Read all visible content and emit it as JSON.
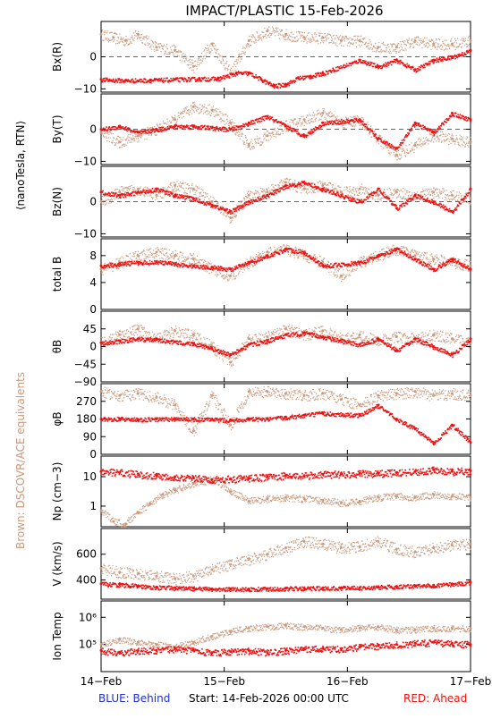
{
  "title": "IMPACT/PLASTIC   15-Feb-2026",
  "side_label_rtn": "⟨nanoTesla, RTN⟩",
  "side_label_brown": "Brown: DSCOVR/ACE equivalents",
  "footer": {
    "behind": "BLUE: Behind",
    "start": "Start: 14-Feb-2026 00:00 UTC",
    "ahead": "RED: Ahead"
  },
  "colors": {
    "ahead": "#ee1111",
    "brown": "#c89a7e",
    "axis": "#000000"
  },
  "chart_data": [
    {
      "type": "scatter",
      "ylabel": "Bx(R)",
      "ylim": [
        -11,
        11
      ],
      "yticks": [
        {
          "v": 0,
          "label": "0"
        },
        {
          "v": -10,
          "label": "−10"
        }
      ],
      "zero_line": true,
      "series": [
        {
          "color": "brown",
          "x": [
            0,
            0.1,
            0.2,
            0.3,
            0.45,
            0.6,
            0.75,
            0.9,
            1.05,
            1.2,
            1.35,
            1.5,
            1.65,
            1.8,
            1.95,
            2.1,
            2.25,
            2.4,
            2.55,
            2.7,
            2.85,
            3.0
          ],
          "y": [
            7,
            6,
            5,
            7,
            3,
            2,
            -3,
            4,
            -5,
            5,
            8,
            7,
            6,
            6,
            5,
            5,
            3,
            3,
            5,
            4,
            4,
            5
          ]
        },
        {
          "color": "ahead",
          "x": [
            0,
            0.2,
            0.4,
            0.6,
            0.8,
            0.95,
            1.1,
            1.2,
            1.3,
            1.4,
            1.5,
            1.6,
            1.7,
            1.8,
            2.1,
            2.25,
            2.4,
            2.55,
            2.7,
            2.85,
            3.0
          ],
          "y": [
            -7,
            -7.3,
            -7.2,
            -7,
            -6.8,
            -6.7,
            -5,
            -5,
            -7,
            -9,
            -8.5,
            -6.5,
            -6,
            -5,
            -1,
            -3,
            -1,
            -4,
            -1,
            0,
            2
          ]
        }
      ]
    },
    {
      "type": "scatter",
      "ylabel": "By(T)",
      "ylim": [
        -11,
        11
      ],
      "yticks": [
        {
          "v": 0,
          "label": "0"
        },
        {
          "v": -10,
          "label": "−10"
        }
      ],
      "zero_line": true,
      "series": [
        {
          "color": "brown",
          "x": [
            0,
            0.15,
            0.3,
            0.45,
            0.6,
            0.75,
            0.9,
            1.05,
            1.2,
            1.35,
            1.5,
            1.65,
            1.8,
            1.95,
            2.1,
            2.25,
            2.4,
            2.55,
            2.7,
            2.85,
            3.0
          ],
          "y": [
            -1,
            -4,
            -2,
            0,
            3,
            7,
            6,
            2,
            -5,
            -2,
            1,
            3,
            5,
            2,
            3,
            -3,
            -8,
            -5,
            -2,
            -3,
            -4
          ]
        },
        {
          "color": "ahead",
          "x": [
            0,
            0.15,
            0.3,
            0.45,
            0.6,
            0.75,
            0.9,
            1.05,
            1.2,
            1.35,
            1.5,
            1.65,
            1.8,
            2.1,
            2.25,
            2.4,
            2.55,
            2.7,
            2.85,
            3.0
          ],
          "y": [
            0,
            1,
            -1,
            0,
            1,
            1,
            0.5,
            0,
            2,
            4,
            1,
            -2,
            2,
            3,
            -3,
            -6,
            2,
            -1,
            5,
            3
          ]
        }
      ]
    },
    {
      "type": "scatter",
      "ylabel": "Bz(N)",
      "ylim": [
        -11,
        11
      ],
      "yticks": [
        {
          "v": 0,
          "label": "0"
        },
        {
          "v": -10,
          "label": "−10"
        }
      ],
      "zero_line": true,
      "series": [
        {
          "color": "brown",
          "x": [
            0,
            0.15,
            0.3,
            0.45,
            0.6,
            0.75,
            0.9,
            1.05,
            1.2,
            1.35,
            1.5,
            1.65,
            1.8,
            1.95,
            2.1,
            2.25,
            2.4,
            2.55,
            2.7,
            2.85,
            3.0
          ],
          "y": [
            0,
            3,
            4,
            2,
            5,
            4,
            0,
            -5,
            2,
            3,
            6,
            4,
            5,
            3,
            4,
            2,
            3,
            2,
            3,
            2,
            1
          ]
        },
        {
          "color": "ahead",
          "x": [
            0,
            0.15,
            0.3,
            0.45,
            0.6,
            0.75,
            0.9,
            1.05,
            1.2,
            1.35,
            1.5,
            1.65,
            1.8,
            2.1,
            2.25,
            2.4,
            2.55,
            2.7,
            2.85,
            3.0
          ],
          "y": [
            3,
            2,
            3,
            4,
            2,
            1,
            -1,
            -3,
            0,
            2,
            5,
            6,
            4,
            0,
            4,
            -2,
            2,
            0,
            -3,
            4
          ]
        }
      ]
    },
    {
      "type": "scatter",
      "ylabel": "total B",
      "ylim": [
        0,
        10.5
      ],
      "yticks": [
        {
          "v": 8,
          "label": "8"
        },
        {
          "v": 4,
          "label": "4"
        },
        {
          "v": 0,
          "label": "0"
        }
      ],
      "zero_line": false,
      "series": [
        {
          "color": "brown",
          "x": [
            0,
            0.15,
            0.3,
            0.45,
            0.6,
            0.75,
            0.9,
            1.05,
            1.2,
            1.35,
            1.5,
            1.65,
            1.8,
            1.95,
            2.1,
            2.25,
            2.4,
            2.55,
            2.7,
            2.85,
            3.0
          ],
          "y": [
            6,
            7,
            8,
            8.5,
            8,
            7.5,
            6,
            5,
            7,
            8.5,
            9,
            8,
            7,
            5,
            7,
            8,
            9,
            8,
            7.5,
            7,
            6.5
          ]
        },
        {
          "color": "ahead",
          "x": [
            0,
            0.15,
            0.3,
            0.45,
            0.6,
            0.75,
            0.9,
            1.05,
            1.2,
            1.35,
            1.5,
            1.65,
            1.8,
            2.1,
            2.25,
            2.4,
            2.55,
            2.7,
            2.85,
            3.0
          ],
          "y": [
            6.5,
            6.8,
            7,
            7.1,
            6.8,
            6.5,
            6.3,
            6,
            7,
            8,
            9,
            8.5,
            6.5,
            7,
            8,
            9,
            7.5,
            6,
            7.5,
            6
          ]
        }
      ]
    },
    {
      "type": "scatter",
      "ylabel": "θB",
      "ylim": [
        -90,
        90
      ],
      "yticks": [
        {
          "v": 45,
          "label": "45"
        },
        {
          "v": 0,
          "label": "0"
        },
        {
          "v": -45,
          "label": "−45"
        },
        {
          "v": -90,
          "label": "−90"
        }
      ],
      "zero_line": false,
      "series": [
        {
          "color": "brown",
          "x": [
            0,
            0.15,
            0.3,
            0.45,
            0.6,
            0.75,
            0.9,
            1.05,
            1.2,
            1.35,
            1.5,
            1.65,
            1.8,
            1.95,
            2.1,
            2.25,
            2.4,
            2.55,
            2.7,
            2.85,
            3.0
          ],
          "y": [
            10,
            30,
            45,
            20,
            40,
            30,
            0,
            -40,
            20,
            25,
            45,
            30,
            40,
            20,
            30,
            15,
            25,
            20,
            30,
            20,
            10
          ]
        },
        {
          "color": "ahead",
          "x": [
            0,
            0.15,
            0.3,
            0.45,
            0.6,
            0.75,
            0.9,
            1.05,
            1.2,
            1.35,
            1.5,
            1.65,
            1.8,
            2.1,
            2.25,
            2.4,
            2.55,
            2.7,
            2.85,
            3.0
          ],
          "y": [
            10,
            15,
            20,
            18,
            12,
            8,
            -5,
            -20,
            5,
            15,
            30,
            35,
            25,
            5,
            20,
            -10,
            20,
            0,
            -20,
            20
          ]
        }
      ]
    },
    {
      "type": "scatter",
      "ylabel": "φB",
      "ylim": [
        0,
        360
      ],
      "yticks": [
        {
          "v": 270,
          "label": "270"
        },
        {
          "v": 180,
          "label": "180"
        },
        {
          "v": 90,
          "label": "90"
        },
        {
          "v": 0,
          "label": "0"
        }
      ],
      "zero_line": false,
      "series": [
        {
          "color": "brown",
          "x": [
            0,
            0.15,
            0.3,
            0.45,
            0.6,
            0.75,
            0.9,
            1.05,
            1.2,
            1.35,
            1.5,
            1.65,
            1.8,
            1.95,
            2.1,
            2.25,
            2.4,
            2.55,
            2.7,
            2.85,
            3.0
          ],
          "y": [
            320,
            300,
            310,
            290,
            250,
            120,
            300,
            150,
            320,
            320,
            310,
            300,
            310,
            280,
            250,
            300,
            310,
            320,
            300,
            310,
            300
          ]
        },
        {
          "color": "ahead",
          "x": [
            0,
            0.15,
            0.3,
            0.45,
            0.6,
            0.75,
            0.9,
            1.05,
            1.2,
            1.35,
            1.5,
            1.65,
            1.8,
            2.1,
            2.25,
            2.4,
            2.55,
            2.7,
            2.85,
            3.0
          ],
          "y": [
            180,
            182,
            178,
            180,
            182,
            180,
            178,
            176,
            180,
            180,
            190,
            200,
            210,
            200,
            250,
            180,
            130,
            60,
            150,
            60
          ]
        }
      ]
    },
    {
      "type": "scatter",
      "ylabel": "Np (cm−3)",
      "ylim": [
        0.2,
        50
      ],
      "log": true,
      "yticks": [
        {
          "v": 10,
          "label": "10"
        },
        {
          "v": 1,
          "label": "1"
        }
      ],
      "zero_line": false,
      "series": [
        {
          "color": "brown",
          "x": [
            0,
            0.1,
            0.2,
            0.3,
            0.4,
            0.5,
            0.6,
            0.75,
            0.9,
            1.05,
            1.2,
            1.35,
            1.5,
            1.65,
            1.8,
            1.95,
            2.1,
            2.25,
            2.4,
            2.55,
            2.7,
            2.85,
            3.0
          ],
          "y": [
            0.7,
            0.3,
            0.25,
            0.6,
            1.2,
            2.5,
            3.5,
            6,
            8,
            3,
            1.5,
            1.8,
            2,
            1.8,
            1.6,
            1.3,
            1.5,
            2,
            2.2,
            2,
            2.5,
            2.2,
            2
          ]
        },
        {
          "color": "ahead",
          "x": [
            0,
            0.15,
            0.3,
            0.45,
            0.6,
            0.75,
            0.9,
            1.05,
            1.2,
            1.35,
            1.5,
            1.65,
            1.8,
            1.95,
            2.1,
            2.25,
            2.4,
            2.55,
            2.7,
            2.85,
            3.0
          ],
          "y": [
            15,
            14,
            12,
            11,
            10,
            9,
            8,
            8.5,
            9,
            10,
            11,
            11,
            12,
            12.5,
            13,
            13,
            14,
            15,
            17,
            15,
            16
          ]
        }
      ]
    },
    {
      "type": "scatter",
      "ylabel": "V (km/s)",
      "ylim": [
        250,
        800
      ],
      "yticks": [
        {
          "v": 600,
          "label": "600"
        },
        {
          "v": 400,
          "label": "400"
        }
      ],
      "zero_line": false,
      "series": [
        {
          "color": "brown",
          "x": [
            0,
            0.15,
            0.3,
            0.45,
            0.6,
            0.75,
            0.9,
            1.05,
            1.2,
            1.35,
            1.5,
            1.65,
            1.8,
            1.95,
            2.1,
            2.25,
            2.4,
            2.55,
            2.7,
            2.85,
            3.0
          ],
          "y": [
            490,
            460,
            450,
            430,
            410,
            430,
            480,
            520,
            560,
            600,
            650,
            700,
            680,
            650,
            660,
            700,
            640,
            620,
            650,
            670,
            680
          ]
        },
        {
          "color": "ahead",
          "x": [
            0,
            0.15,
            0.3,
            0.45,
            0.6,
            0.75,
            0.9,
            1.05,
            1.2,
            1.35,
            1.5,
            1.65,
            1.8,
            1.95,
            2.1,
            2.25,
            2.4,
            2.55,
            2.7,
            2.85,
            3.0
          ],
          "y": [
            370,
            365,
            355,
            345,
            340,
            335,
            330,
            330,
            330,
            332,
            335,
            335,
            338,
            340,
            340,
            345,
            350,
            355,
            360,
            370,
            380
          ]
        }
      ]
    },
    {
      "type": "scatter",
      "ylabel": "Ion Temp",
      "ylim": [
        10000,
        4000000
      ],
      "log": true,
      "yticks": [
        {
          "v": 1000000,
          "label": "10⁶"
        },
        {
          "v": 100000,
          "label": "10⁵"
        }
      ],
      "zero_line": false,
      "series": [
        {
          "color": "brown",
          "x": [
            0,
            0.15,
            0.3,
            0.45,
            0.6,
            0.75,
            0.9,
            1.05,
            1.2,
            1.35,
            1.5,
            1.65,
            1.8,
            1.95,
            2.1,
            2.25,
            2.4,
            2.55,
            2.7,
            2.85,
            3.0
          ],
          "y": [
            100000,
            150000,
            120000,
            100000,
            80000,
            120000,
            200000,
            300000,
            400000,
            450000,
            500000,
            450000,
            400000,
            350000,
            400000,
            450000,
            350000,
            350000,
            400000,
            380000,
            380000
          ]
        },
        {
          "color": "ahead",
          "x": [
            0,
            0.15,
            0.3,
            0.45,
            0.6,
            0.75,
            0.9,
            1.05,
            1.2,
            1.35,
            1.5,
            1.65,
            1.8,
            1.95,
            2.1,
            2.25,
            2.4,
            2.55,
            2.7,
            2.85,
            3.0
          ],
          "y": [
            60000,
            50000,
            60000,
            60000,
            70000,
            60000,
            50000,
            55000,
            60000,
            50000,
            60000,
            70000,
            70000,
            70000,
            80000,
            90000,
            100000,
            110000,
            120000,
            110000,
            100000
          ]
        }
      ]
    }
  ],
  "x_axis": {
    "xlim": [
      0,
      3
    ],
    "ticks": [
      {
        "v": 0,
        "label": "14−Feb"
      },
      {
        "v": 1,
        "label": "15−Feb"
      },
      {
        "v": 2,
        "label": "16−Feb"
      },
      {
        "v": 3,
        "label": "17−Feb"
      }
    ]
  }
}
